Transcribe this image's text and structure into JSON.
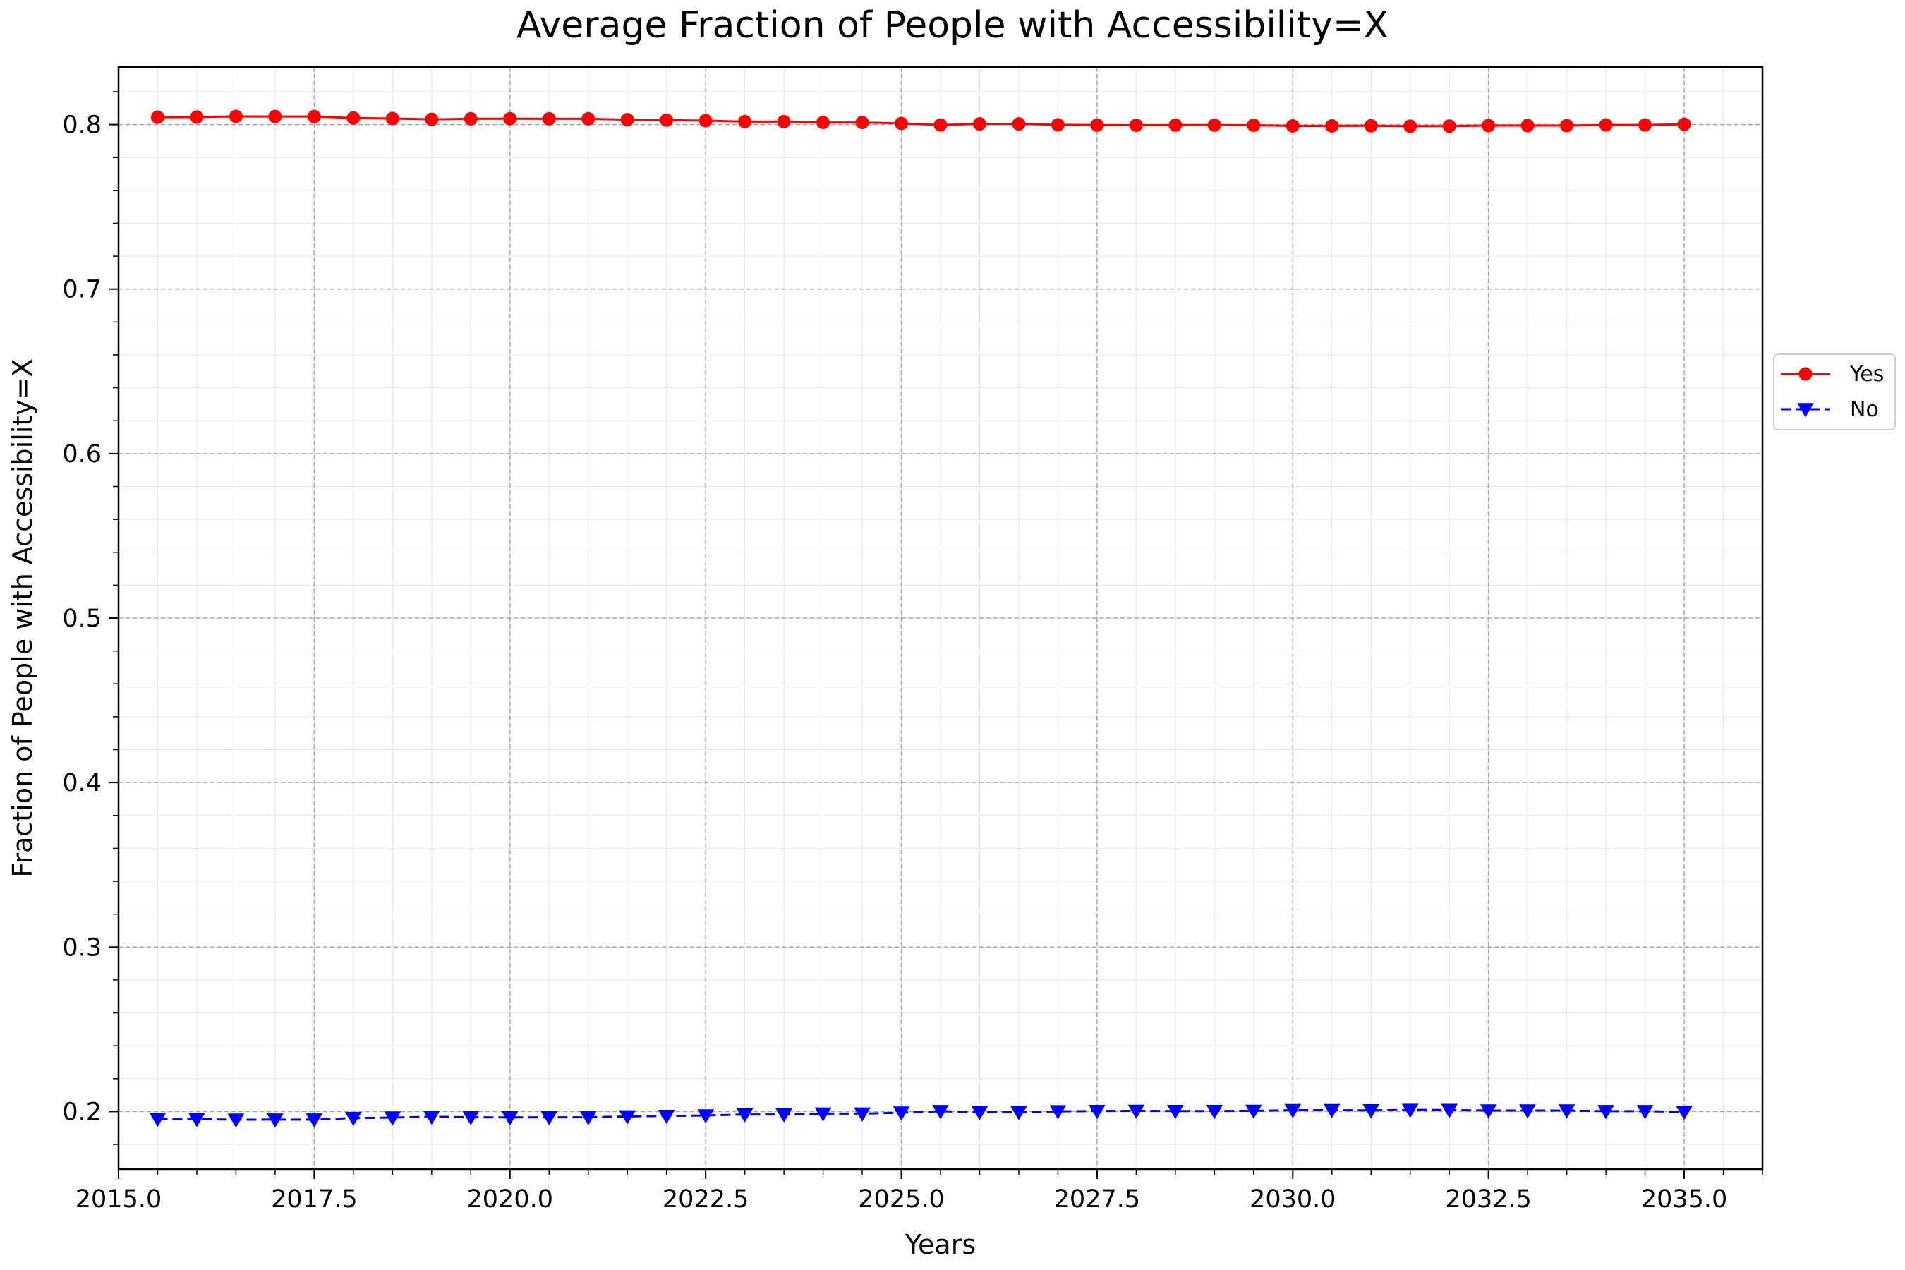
{
  "chart_data": {
    "type": "line",
    "title": "Average Fraction of People with Accessibility=X",
    "xlabel": "Years",
    "ylabel": "Fraction of People with Accessibility=X",
    "xlim": [
      2015.0,
      2036.0
    ],
    "ylim": [
      0.165,
      0.835
    ],
    "x_ticks": [
      2015.0,
      2017.5,
      2020.0,
      2022.5,
      2025.0,
      2027.5,
      2030.0,
      2032.5,
      2035.0
    ],
    "x_tick_labels": [
      "2015.0",
      "2017.5",
      "2020.0",
      "2022.5",
      "2025.0",
      "2027.5",
      "2030.0",
      "2032.5",
      "2035.0"
    ],
    "y_ticks": [
      0.2,
      0.3,
      0.4,
      0.5,
      0.6,
      0.7,
      0.8
    ],
    "y_tick_labels": [
      "0.2",
      "0.3",
      "0.4",
      "0.5",
      "0.6",
      "0.7",
      "0.8"
    ],
    "grid": true,
    "legend_position": "right",
    "x": [
      2015.5,
      2016.0,
      2016.5,
      2017.0,
      2017.5,
      2018.0,
      2018.5,
      2019.0,
      2019.5,
      2020.0,
      2020.5,
      2021.0,
      2021.5,
      2022.0,
      2022.5,
      2023.0,
      2023.5,
      2024.0,
      2024.5,
      2025.0,
      2025.5,
      2026.0,
      2026.5,
      2027.0,
      2027.5,
      2028.0,
      2028.5,
      2029.0,
      2029.5,
      2030.0,
      2030.5,
      2031.0,
      2031.5,
      2032.0,
      2032.5,
      2033.0,
      2033.5,
      2034.0,
      2034.5,
      2035.0
    ],
    "series": [
      {
        "name": "Yes",
        "color": "#ff0000",
        "marker": "circle",
        "line_style": "solid",
        "values": [
          0.8045,
          0.8046,
          0.805,
          0.8049,
          0.8049,
          0.804,
          0.8037,
          0.8032,
          0.8035,
          0.8036,
          0.8035,
          0.8035,
          0.803,
          0.8027,
          0.8024,
          0.8018,
          0.8018,
          0.8013,
          0.8013,
          0.8007,
          0.7998,
          0.8004,
          0.8004,
          0.7999,
          0.7997,
          0.7996,
          0.7997,
          0.7997,
          0.7996,
          0.7992,
          0.7992,
          0.7993,
          0.799,
          0.7991,
          0.7994,
          0.7994,
          0.7994,
          0.7998,
          0.7998,
          0.8002
        ]
      },
      {
        "name": "No",
        "color": "#0000ff",
        "marker": "triangle-down",
        "line_style": "dashed",
        "values": [
          0.1955,
          0.1954,
          0.195,
          0.1951,
          0.1951,
          0.196,
          0.1963,
          0.1968,
          0.1965,
          0.1964,
          0.1965,
          0.1965,
          0.197,
          0.1973,
          0.1976,
          0.1982,
          0.1982,
          0.1987,
          0.1987,
          0.1993,
          0.2002,
          0.1996,
          0.1996,
          0.2001,
          0.2003,
          0.2004,
          0.2003,
          0.2003,
          0.2004,
          0.2008,
          0.2008,
          0.2007,
          0.201,
          0.2009,
          0.2006,
          0.2006,
          0.2006,
          0.2002,
          0.2002,
          0.1998
        ]
      }
    ]
  }
}
